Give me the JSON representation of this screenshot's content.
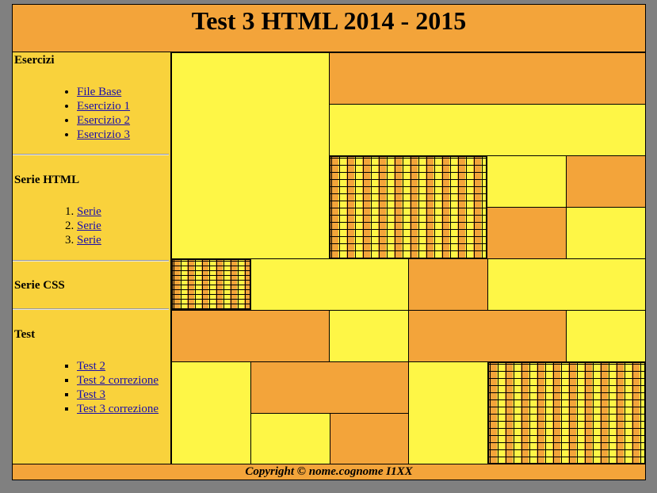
{
  "header": {
    "title": "Test 3 HTML 2014 - 2015"
  },
  "sidebar": {
    "esercizi": {
      "heading": "Esercizi",
      "links": [
        "File Base",
        "Esercizio 1",
        "Esercizio 2",
        "Esercizio 3"
      ]
    },
    "serie_html": {
      "heading": "Serie HTML",
      "links": [
        "Serie",
        "Serie",
        "Serie"
      ]
    },
    "serie_css": {
      "heading": "Serie CSS"
    },
    "test": {
      "heading": "Test",
      "links": [
        "Test 2",
        "Test 2 correzione",
        "Test 3",
        "Test 3 correzione"
      ]
    }
  },
  "colors": {
    "yellow": "#FEF646",
    "orange": "#F3A43A",
    "sidebar": "#F9D23C",
    "background": "#808080"
  },
  "footer": {
    "text": "Copyright © nome.cognome I1XX"
  }
}
